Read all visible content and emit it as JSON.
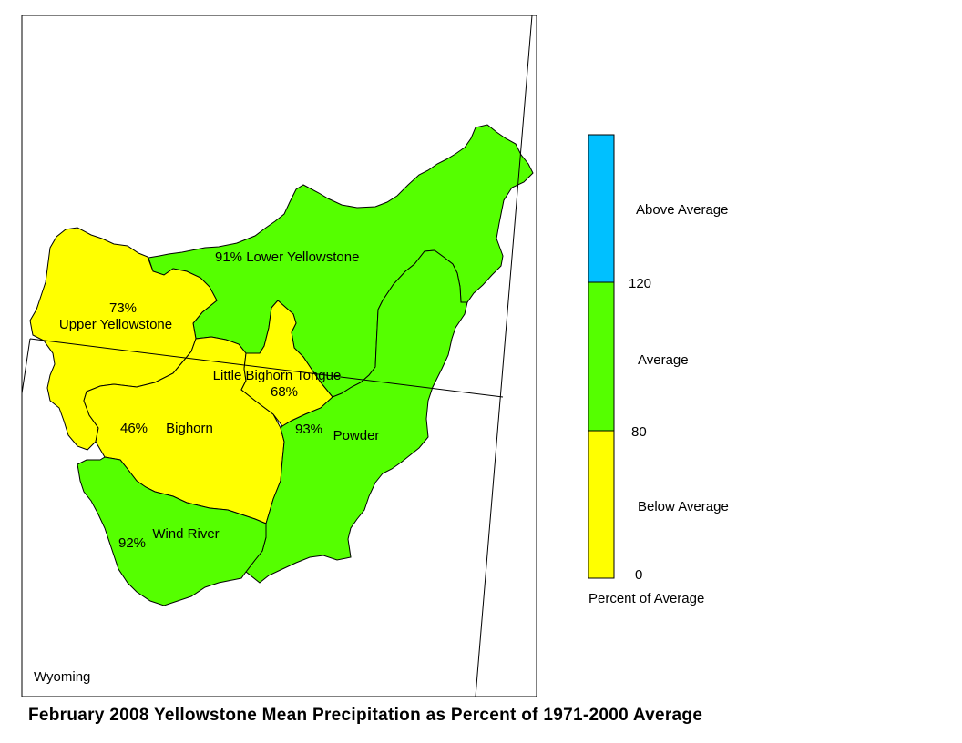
{
  "title": "February 2008 Yellowstone Mean Precipitation as Percent of 1971-2000 Average",
  "map": {
    "state_label": "Wyoming",
    "basins": [
      {
        "id": "lower-yellowstone",
        "name": "Lower Yellowstone",
        "pct": "91%",
        "color": "#55ff00"
      },
      {
        "id": "upper-yellowstone",
        "name": "Upper Yellowstone",
        "pct": "73%",
        "color": "#ffff00"
      },
      {
        "id": "little-bighorn-tongue",
        "name": "Little Bighorn Tongue",
        "pct": "68%",
        "color": "#ffff00"
      },
      {
        "id": "bighorn",
        "name": "Bighorn",
        "pct": "46%",
        "color": "#ffff00"
      },
      {
        "id": "powder",
        "name": "Powder",
        "pct": "93%",
        "color": "#55ff00"
      },
      {
        "id": "wind-river",
        "name": "Wind River",
        "pct": "92%",
        "color": "#55ff00"
      }
    ]
  },
  "legend": {
    "caption": "Percent of Average",
    "classes": [
      {
        "label": "Above Average",
        "color": "#00c0ff"
      },
      {
        "label": "Average",
        "color": "#55ff00"
      },
      {
        "label": "Below Average",
        "color": "#ffff00"
      }
    ],
    "breaks": [
      "120",
      "80",
      "0"
    ]
  }
}
